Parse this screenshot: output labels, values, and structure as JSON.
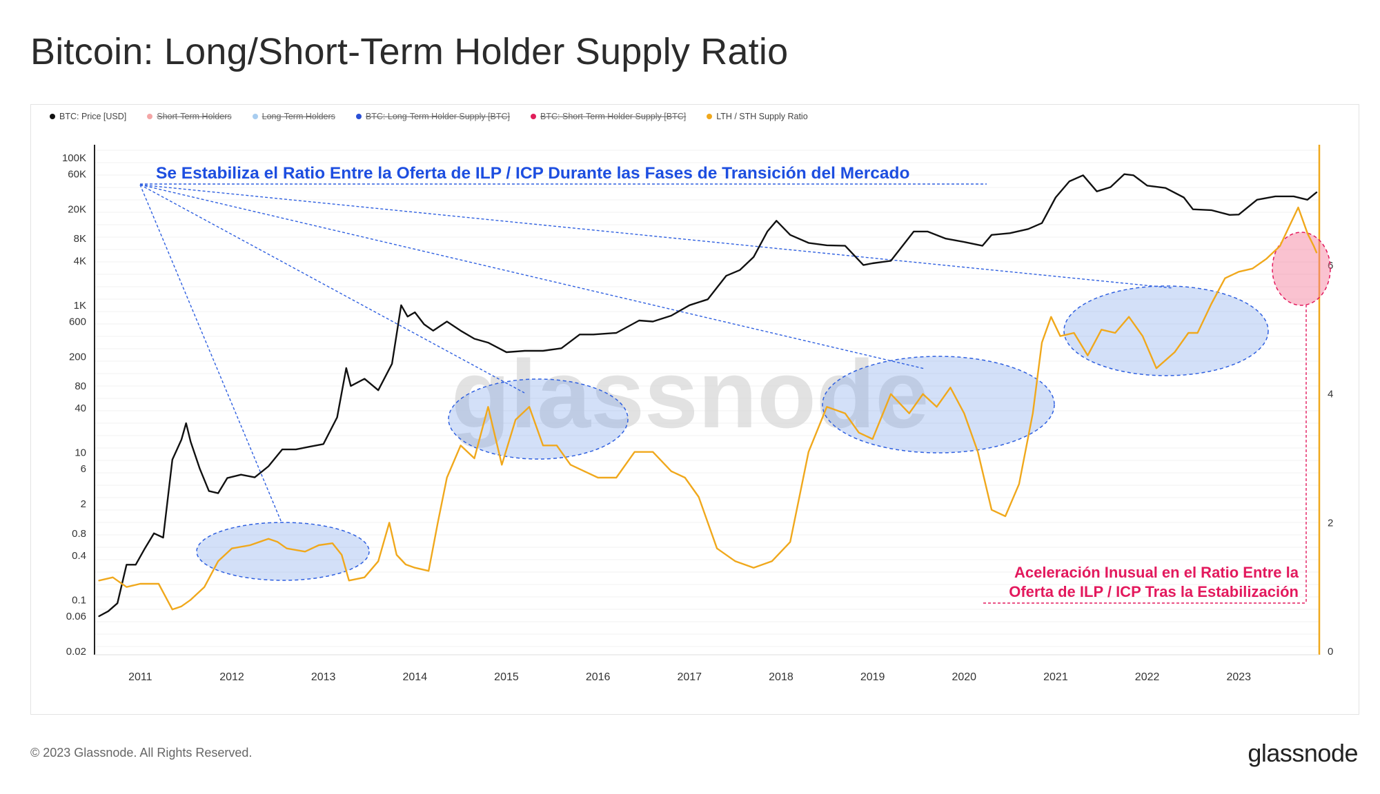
{
  "page": {
    "title": "Bitcoin: Long/Short-Term Holder Supply Ratio",
    "footer": "© 2023 Glassnode. All Rights Reserved.",
    "brand": "glassnode",
    "watermark": "glassnode"
  },
  "legend": [
    {
      "label": "BTC: Price [USD]",
      "color": "#111111",
      "enabled": true
    },
    {
      "label": "Short-Term Holders",
      "color": "#f4a6a6",
      "enabled": false
    },
    {
      "label": "Long-Term Holders",
      "color": "#a8cdf0",
      "enabled": false
    },
    {
      "label": "BTC: Long-Term Holder Supply [BTC]",
      "color": "#2a4fd6",
      "enabled": false
    },
    {
      "label": "BTC: Short-Term Holder Supply [BTC]",
      "color": "#e01e5a",
      "enabled": false
    },
    {
      "label": "LTH / STH Supply Ratio",
      "color": "#f0a81c",
      "enabled": true
    }
  ],
  "annotations": {
    "blue_text": "Se Estabiliza el Ratio Entre la Oferta de ILP / ICP Durante las Fases de Transición del Mercado",
    "pink_line1": "Aceleración Inusual en el Ratio Entre la",
    "pink_line2": "Oferta de ILP / ICP Tras la Estabilización",
    "blue_color": "#1d4ee0",
    "pink_color": "#e3195d"
  },
  "chart_data": {
    "type": "line",
    "x_axis": {
      "ticks": [
        "2011",
        "2012",
        "2013",
        "2014",
        "2015",
        "2016",
        "2017",
        "2018",
        "2019",
        "2020",
        "2021",
        "2022",
        "2023"
      ],
      "range": [
        "2010-07",
        "2023-11"
      ]
    },
    "y_left": {
      "scale": "log",
      "ticks": [
        "100K",
        "60K",
        "20K",
        "8K",
        "4K",
        "1K",
        "600",
        "200",
        "80",
        "40",
        "10",
        "6",
        "2",
        "0.8",
        "0.4",
        "0.1",
        "0.06",
        "0.02"
      ],
      "tick_values": [
        100000,
        60000,
        20000,
        8000,
        4000,
        1000,
        600,
        200,
        80,
        40,
        10,
        6,
        2,
        0.8,
        0.4,
        0.1,
        0.06,
        0.02
      ]
    },
    "y_right": {
      "scale": "linear",
      "ticks": [
        "0",
        "2",
        "4",
        "6"
      ],
      "tick_values": [
        0,
        2,
        4,
        6
      ]
    },
    "series": [
      {
        "name": "BTC: Price [USD]",
        "color": "#111111",
        "axis": "left",
        "x": [
          2010.55,
          2010.65,
          2010.75,
          2010.85,
          2010.95,
          2011.05,
          2011.15,
          2011.25,
          2011.35,
          2011.45,
          2011.5,
          2011.55,
          2011.65,
          2011.75,
          2011.85,
          2011.95,
          2012.1,
          2012.25,
          2012.4,
          2012.55,
          2012.7,
          2012.85,
          2013.0,
          2013.15,
          2013.25,
          2013.3,
          2013.45,
          2013.6,
          2013.75,
          2013.85,
          2013.92,
          2014.0,
          2014.1,
          2014.2,
          2014.35,
          2014.5,
          2014.65,
          2014.8,
          2015.0,
          2015.2,
          2015.4,
          2015.6,
          2015.8,
          2015.95,
          2016.2,
          2016.45,
          2016.6,
          2016.8,
          2017.0,
          2017.2,
          2017.4,
          2017.55,
          2017.7,
          2017.85,
          2017.95,
          2018.1,
          2018.3,
          2018.5,
          2018.7,
          2018.9,
          2019.0,
          2019.2,
          2019.45,
          2019.6,
          2019.8,
          2020.0,
          2020.2,
          2020.3,
          2020.5,
          2020.7,
          2020.85,
          2021.0,
          2021.15,
          2021.3,
          2021.45,
          2021.6,
          2021.75,
          2021.85,
          2022.0,
          2022.2,
          2022.4,
          2022.5,
          2022.7,
          2022.9,
          2023.0,
          2023.2,
          2023.4,
          2023.6,
          2023.75,
          2023.85
        ],
        "y": [
          0.06,
          0.07,
          0.09,
          0.3,
          0.3,
          0.5,
          0.8,
          0.7,
          8,
          15,
          25,
          14,
          6,
          3,
          2.8,
          4.5,
          5,
          4.6,
          6.5,
          11,
          11,
          12,
          13,
          30,
          140,
          80,
          100,
          70,
          160,
          1000,
          700,
          800,
          550,
          450,
          600,
          450,
          350,
          310,
          230,
          240,
          240,
          260,
          400,
          400,
          420,
          620,
          600,
          720,
          1000,
          1200,
          2500,
          3000,
          4500,
          10000,
          14000,
          9000,
          7000,
          6500,
          6400,
          3500,
          3700,
          4000,
          10000,
          10000,
          8000,
          7200,
          6400,
          9000,
          9500,
          10800,
          13000,
          29000,
          48000,
          58000,
          35000,
          40000,
          60000,
          58000,
          42000,
          39000,
          29000,
          20000,
          19500,
          16800,
          17000,
          27000,
          30000,
          30000,
          27000,
          34000
        ]
      },
      {
        "name": "LTH / STH Supply Ratio",
        "color": "#f0a81c",
        "axis": "right",
        "x": [
          2010.55,
          2010.7,
          2010.85,
          2011.0,
          2011.2,
          2011.35,
          2011.45,
          2011.55,
          2011.7,
          2011.85,
          2012.0,
          2012.2,
          2012.4,
          2012.5,
          2012.6,
          2012.8,
          2012.95,
          2013.1,
          2013.2,
          2013.28,
          2013.45,
          2013.6,
          2013.72,
          2013.8,
          2013.9,
          2014.0,
          2014.15,
          2014.25,
          2014.35,
          2014.5,
          2014.65,
          2014.8,
          2014.95,
          2015.1,
          2015.25,
          2015.4,
          2015.55,
          2015.7,
          2015.85,
          2016.0,
          2016.2,
          2016.4,
          2016.6,
          2016.8,
          2016.95,
          2017.1,
          2017.3,
          2017.5,
          2017.7,
          2017.9,
          2018.1,
          2018.3,
          2018.5,
          2018.7,
          2018.85,
          2019.0,
          2019.2,
          2019.4,
          2019.55,
          2019.7,
          2019.85,
          2020.0,
          2020.15,
          2020.3,
          2020.45,
          2020.6,
          2020.75,
          2020.85,
          2020.95,
          2021.05,
          2021.2,
          2021.35,
          2021.5,
          2021.65,
          2021.8,
          2021.95,
          2022.1,
          2022.3,
          2022.45,
          2022.55,
          2022.7,
          2022.85,
          2023.0,
          2023.15,
          2023.3,
          2023.45,
          2023.55,
          2023.65,
          2023.75,
          2023.82,
          2023.85
        ],
        "y": [
          1.1,
          1.15,
          1.0,
          1.05,
          1.05,
          0.65,
          0.7,
          0.8,
          1.0,
          1.4,
          1.6,
          1.65,
          1.75,
          1.7,
          1.6,
          1.55,
          1.65,
          1.68,
          1.5,
          1.1,
          1.15,
          1.4,
          2.0,
          1.5,
          1.35,
          1.3,
          1.25,
          2.0,
          2.7,
          3.2,
          3.0,
          3.8,
          2.9,
          3.6,
          3.8,
          3.2,
          3.2,
          2.9,
          2.8,
          2.7,
          2.7,
          3.1,
          3.1,
          2.8,
          2.7,
          2.4,
          1.6,
          1.4,
          1.3,
          1.4,
          1.7,
          3.1,
          3.8,
          3.7,
          3.4,
          3.3,
          4.0,
          3.7,
          4.0,
          3.8,
          4.1,
          3.7,
          3.1,
          2.2,
          2.1,
          2.6,
          3.7,
          4.8,
          5.2,
          4.9,
          4.95,
          4.6,
          5.0,
          4.95,
          5.2,
          4.9,
          4.4,
          4.65,
          4.95,
          4.95,
          5.4,
          5.8,
          5.9,
          5.95,
          6.1,
          6.3,
          6.6,
          6.9,
          6.5,
          6.3,
          6.2
        ]
      }
    ],
    "highlights": [
      {
        "label": "2012-2013 plateau"
      },
      {
        "label": "2015 plateau"
      },
      {
        "label": "2019-2020 plateau"
      },
      {
        "label": "2021-2023 plateau"
      },
      {
        "label": "2023 acceleration"
      }
    ]
  }
}
